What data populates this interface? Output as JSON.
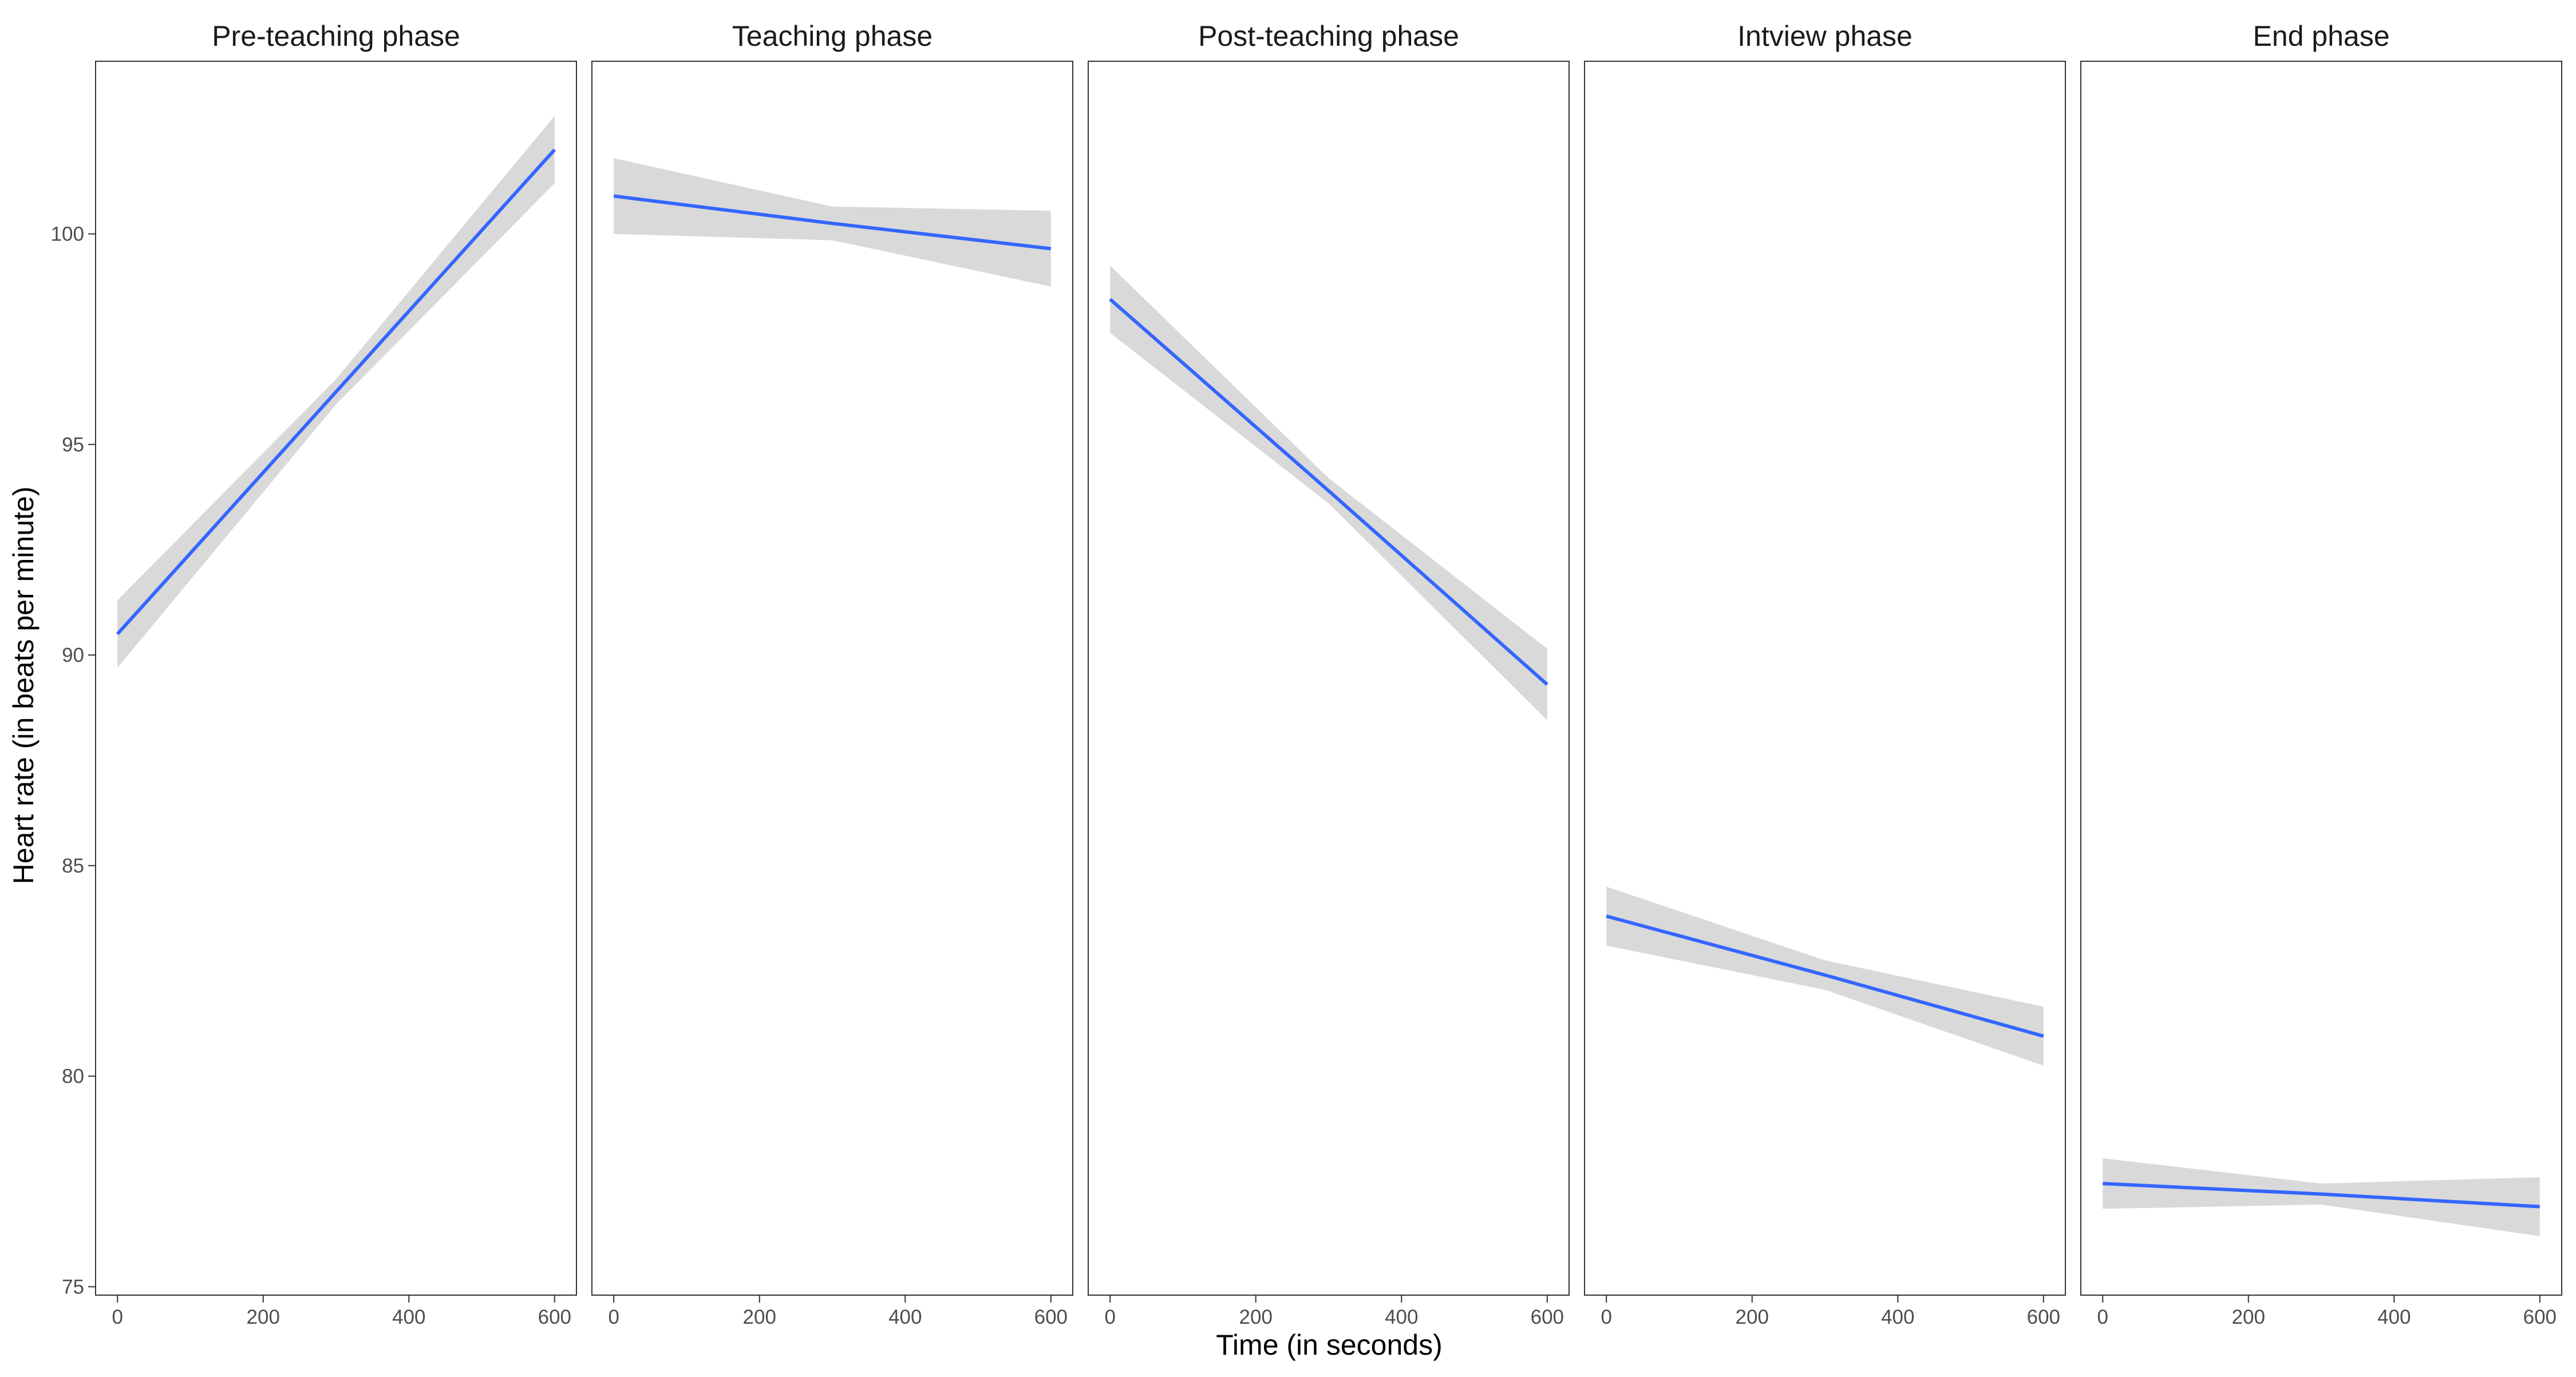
{
  "chart_data": {
    "type": "line",
    "xlabel": "Time (in seconds)",
    "ylabel": "Heart rate (in beats per minute)",
    "xlim": [
      -30,
      630
    ],
    "ylim": [
      74.8,
      104.1
    ],
    "x_ticks": [
      0,
      200,
      400,
      600
    ],
    "y_ticks": [
      75,
      80,
      85,
      90,
      95,
      100
    ],
    "grid": false,
    "line_color": "#3366FF",
    "band_color": "#D9D9D9",
    "panels": [
      {
        "title": "Pre-teaching phase",
        "x": [
          0,
          300,
          600
        ],
        "y": [
          90.5,
          96.25,
          102.0
        ],
        "ci_lower": [
          89.7,
          95.95,
          101.2
        ],
        "ci_upper": [
          91.3,
          96.55,
          102.8
        ]
      },
      {
        "title": "Teaching phase",
        "x": [
          0,
          300,
          600
        ],
        "y": [
          100.9,
          100.25,
          99.65
        ],
        "ci_lower": [
          100.0,
          99.85,
          98.75
        ],
        "ci_upper": [
          101.8,
          100.65,
          100.55
        ]
      },
      {
        "title": "Post-teaching phase",
        "x": [
          0,
          300,
          600
        ],
        "y": [
          98.45,
          93.9,
          89.3
        ],
        "ci_lower": [
          97.65,
          93.6,
          88.45
        ],
        "ci_upper": [
          99.25,
          94.2,
          90.15
        ]
      },
      {
        "title": "Intview phase",
        "x": [
          0,
          300,
          600
        ],
        "y": [
          83.8,
          82.4,
          80.95
        ],
        "ci_lower": [
          83.1,
          82.05,
          80.25
        ],
        "ci_upper": [
          84.5,
          82.75,
          81.65
        ]
      },
      {
        "title": "End phase",
        "x": [
          0,
          300,
          600
        ],
        "y": [
          77.45,
          77.2,
          76.9
        ],
        "ci_lower": [
          76.85,
          76.95,
          76.2
        ],
        "ci_upper": [
          78.05,
          77.45,
          77.6
        ]
      }
    ]
  }
}
